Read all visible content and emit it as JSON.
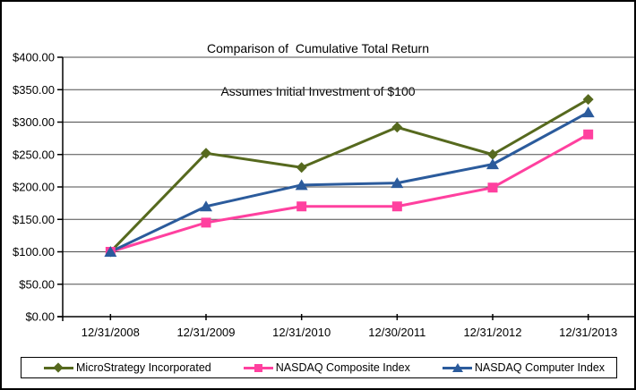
{
  "window": {
    "background": "#ffffff",
    "border_color": "#000000"
  },
  "title": {
    "line1": "Comparison of  Cumulative Total Return",
    "line2": "Assumes Initial Investment of $100"
  },
  "chart_data": {
    "type": "line",
    "title": "Comparison of  Cumulative Total Return",
    "subtitle": "Assumes Initial Investment of $100",
    "categories": [
      "12/31/2008",
      "12/31/2009",
      "12/31/2010",
      "12/30/2011",
      "12/31/2012",
      "12/31/2013"
    ],
    "series": [
      {
        "name": "MicroStrategy Incorporated",
        "marker": "diamond",
        "color": "#56691E",
        "values": [
          100,
          252,
          230,
          292,
          250,
          335
        ]
      },
      {
        "name": "NASDAQ Composite Index",
        "marker": "square",
        "color": "#FF409F",
        "values": [
          100,
          145,
          170,
          170,
          199,
          281
        ]
      },
      {
        "name": "NASDAQ Computer Index",
        "marker": "triangle",
        "color": "#2B5B9C",
        "values": [
          100,
          170,
          203,
          206,
          235,
          315
        ]
      }
    ],
    "ylim": [
      0,
      400
    ],
    "y_tick_step": 50,
    "y_tick_labels": [
      "$0.00",
      "$50.00",
      "$100.00",
      "$150.00",
      "$200.00",
      "$250.00",
      "$300.00",
      "$350.00",
      "$400.00"
    ],
    "grid": "horizontal",
    "gridline_color": "#4d4d4d",
    "axis_color": "#000000",
    "legend_position": "bottom"
  }
}
